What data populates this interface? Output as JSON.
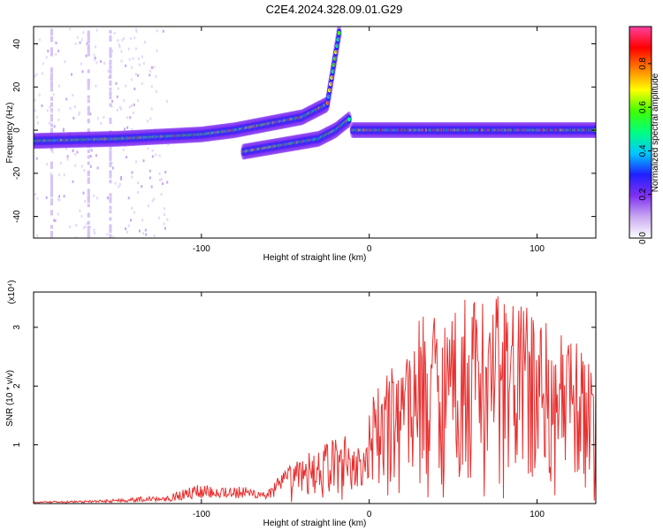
{
  "figure_title": "C2E4.2024.328.09.01.G29",
  "chart_data": [
    {
      "type": "heatmap",
      "xlabel": "Height of straight line (km)",
      "ylabel": "Frequency (Hz)",
      "xlim": [
        -200,
        135
      ],
      "ylim": [
        -50,
        48
      ],
      "x_ticks": [
        -100,
        0,
        100
      ],
      "x_tick_labels": [
        "-100",
        "0",
        "100"
      ],
      "y_ticks": [
        -40,
        -20,
        0,
        20,
        40
      ],
      "y_tick_labels": [
        "-40",
        "-20",
        "0",
        "20",
        "40"
      ],
      "colorbar": {
        "label": "Normalized spectral amplitude",
        "range": [
          0,
          0.97
        ],
        "ticks": [
          0.0,
          0.2,
          0.4,
          0.6,
          0.8
        ],
        "tick_labels": [
          "0.0",
          "0.2",
          "0.4",
          "0.6",
          "0.8"
        ],
        "colormap": [
          "#ffffff",
          "#c8a8f0",
          "#8030f0",
          "#2020ff",
          "#00c8ff",
          "#00ff80",
          "#40ff00",
          "#ffff00",
          "#ff8000",
          "#ff0000",
          "#ff40a0"
        ]
      },
      "grid": false,
      "tracks": [
        {
          "x": [
            -200,
            -150,
            -100,
            -80,
            -60,
            -40,
            -25,
            -18
          ],
          "y": [
            -5,
            -4,
            -2,
            0,
            3,
            6,
            12,
            45
          ]
        },
        {
          "x": [
            -75,
            -60,
            -45,
            -30,
            -20,
            -12
          ],
          "y": [
            -10,
            -8,
            -6,
            -4,
            0,
            5
          ]
        },
        {
          "x": [
            -10,
            0,
            30,
            60,
            100,
            135
          ],
          "y": [
            0,
            0,
            0,
            0,
            0,
            0
          ]
        }
      ]
    },
    {
      "type": "line",
      "xlabel": "Height of straight line (km)",
      "ylabel": "SNR (10 * v/v)",
      "y_multiplier": "(x10⁴)",
      "xlim": [
        -200,
        135
      ],
      "ylim": [
        0,
        3.6
      ],
      "x_ticks": [
        -100,
        0,
        100
      ],
      "x_tick_labels": [
        "-100",
        "0",
        "100"
      ],
      "y_ticks": [
        1,
        2,
        3
      ],
      "y_tick_labels": [
        "1",
        "2",
        "3"
      ],
      "grid": false,
      "series_color": "#e83030",
      "envelope": {
        "x": [
          -200,
          -160,
          -120,
          -100,
          -80,
          -60,
          -50,
          -30,
          -15,
          -1,
          0,
          10,
          30,
          50,
          70,
          90,
          110,
          135
        ],
        "y": [
          0.03,
          0.06,
          0.15,
          0.35,
          0.3,
          0.25,
          0.6,
          1.0,
          1.2,
          1.0,
          1.7,
          2.2,
          3.2,
          3.5,
          3.6,
          3.5,
          3.0,
          2.5
        ]
      }
    }
  ]
}
